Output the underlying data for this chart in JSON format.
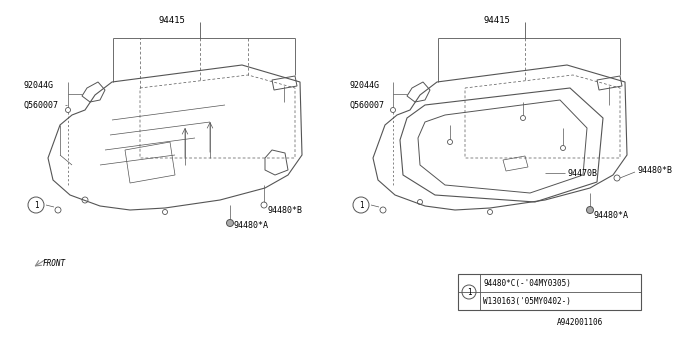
{
  "bg_color": "#ffffff",
  "diagram_code": "A942001106",
  "line_color": "#555555",
  "text_color": "#000000",
  "font_size": 6.0,
  "left": {
    "label_94415": "94415",
    "label_92044G": "92044G",
    "label_Q560007": "Q560007",
    "label_94480B": "94480*B",
    "label_94480A": "94480*A"
  },
  "right": {
    "label_94415": "94415",
    "label_92044G": "92044G",
    "label_Q560007": "Q560007",
    "label_94470B": "94470B",
    "label_94480B": "94480*B",
    "label_94480A": "94480*A"
  },
  "legend": {
    "row1": "94480*C(-'04MY0305)",
    "row2": "W130163('05MY0402-)"
  },
  "front_label": "FRONT"
}
